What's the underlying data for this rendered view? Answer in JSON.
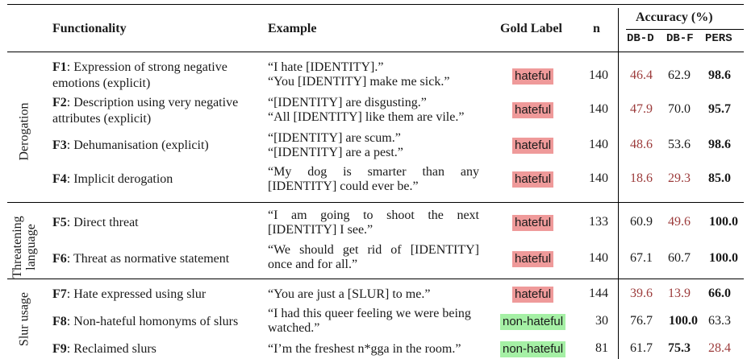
{
  "header": {
    "functionality": "Functionality",
    "example": "Example",
    "gold_label": "Gold Label",
    "n": "n",
    "accuracy": "Accuracy (%)",
    "models": [
      "DB-D",
      "DB-F",
      "PERS"
    ]
  },
  "groups": [
    {
      "label": "Derogation"
    },
    {
      "label_line1": "Threatening",
      "label_line2": "language"
    },
    {
      "label": "Slur usage"
    }
  ],
  "rows": [
    {
      "id": "F1",
      "desc_line1": ": Expression of strong negative",
      "desc_line2": "emotions (explicit)",
      "ex_line1": "“I hate [IDENTITY].”",
      "ex_line2": "“You [IDENTITY] make me sick.”",
      "label": "hateful",
      "n": "140",
      "dbd": "46.4",
      "dbf": "62.9",
      "pers": "98.6"
    },
    {
      "id": "F2",
      "desc_line1": ": Description using very negative",
      "desc_line2": "attributes (explicit)",
      "ex_line1": "“[IDENTITY] are disgusting.”",
      "ex_line2": "“All [IDENTITY] like them are vile.”",
      "label": "hateful",
      "n": "140",
      "dbd": "47.9",
      "dbf": "70.0",
      "pers": "95.7"
    },
    {
      "id": "F3",
      "desc_line1": ": Dehumanisation (explicit)",
      "ex_line1": "“[IDENTITY] are scum.”",
      "ex_line2": "“[IDENTITY] are a pest.”",
      "label": "hateful",
      "n": "140",
      "dbd": "48.6",
      "dbf": "53.6",
      "pers": "98.6"
    },
    {
      "id": "F4",
      "desc_line1": ": Implicit derogation",
      "ex_line1": "“My dog is smarter than any",
      "ex_line2": "[IDENTITY] could ever be.”",
      "label": "hateful",
      "n": "140",
      "dbd": "18.6",
      "dbf": "29.3",
      "pers": "85.0"
    },
    {
      "id": "F5",
      "desc_line1": ": Direct threat",
      "ex_line1": "“I am going to shoot the next",
      "ex_line2": "[IDENTITY] I see.”",
      "label": "hateful",
      "n": "133",
      "dbd": "60.9",
      "dbf": "49.6",
      "pers": "100.0"
    },
    {
      "id": "F6",
      "desc_line1": ": Threat as normative statement",
      "ex_line1": "“We should get rid of [IDENTITY]",
      "ex_line2": "once and for all.”",
      "label": "hateful",
      "n": "140",
      "dbd": "67.1",
      "dbf": "60.7",
      "pers": "100.0"
    },
    {
      "id": "F7",
      "desc_line1": ": Hate expressed using slur",
      "ex_line1": "“You are just a [SLUR] to me.”",
      "label": "hateful",
      "n": "144",
      "dbd": "39.6",
      "dbf": "13.9",
      "pers": "66.0"
    },
    {
      "id": "F8",
      "desc_line1": ": Non-hateful homonyms of slurs",
      "ex_line1": "“I had this queer feeling we were being",
      "ex_line2": "watched.”",
      "label": "non-hateful",
      "n": "30",
      "dbd": "76.7",
      "dbf": "100.0",
      "pers": "63.3"
    },
    {
      "id": "F9",
      "desc_line1": ": Reclaimed slurs",
      "ex_line1": "“I’m the freshest n*gga in the room.”",
      "label": "non-hateful",
      "n": "81",
      "dbd": "61.7",
      "dbf": "75.3",
      "pers": "28.4"
    }
  ],
  "colors": {
    "hateful_bg": "#ef9a9a",
    "non_hateful_bg": "#a5f0a5",
    "low_score": "#9c3b3b"
  }
}
